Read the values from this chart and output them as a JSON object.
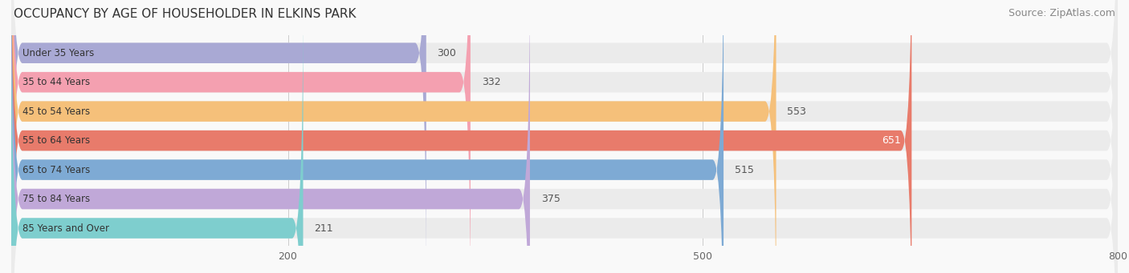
{
  "title": "OCCUPANCY BY AGE OF HOUSEHOLDER IN ELKINS PARK",
  "source": "Source: ZipAtlas.com",
  "categories": [
    "Under 35 Years",
    "35 to 44 Years",
    "45 to 54 Years",
    "55 to 64 Years",
    "65 to 74 Years",
    "75 to 84 Years",
    "85 Years and Over"
  ],
  "values": [
    300,
    332,
    553,
    651,
    515,
    375,
    211
  ],
  "bar_colors": [
    "#a9a9d4",
    "#f4a0b0",
    "#f5c07a",
    "#e87b6b",
    "#7eaad4",
    "#c0a8d8",
    "#7ecece"
  ],
  "bar_bg_color": "#ebebeb",
  "xlim": [
    0,
    800
  ],
  "xticks": [
    200,
    500,
    800
  ],
  "label_inside_color": "#ffffff",
  "label_outside_color": "#555555",
  "label_inside_threshold": 651,
  "title_fontsize": 11,
  "source_fontsize": 9,
  "bar_label_fontsize": 9,
  "category_fontsize": 8.5,
  "tick_fontsize": 9,
  "figsize": [
    14.06,
    3.41
  ],
  "dpi": 100
}
